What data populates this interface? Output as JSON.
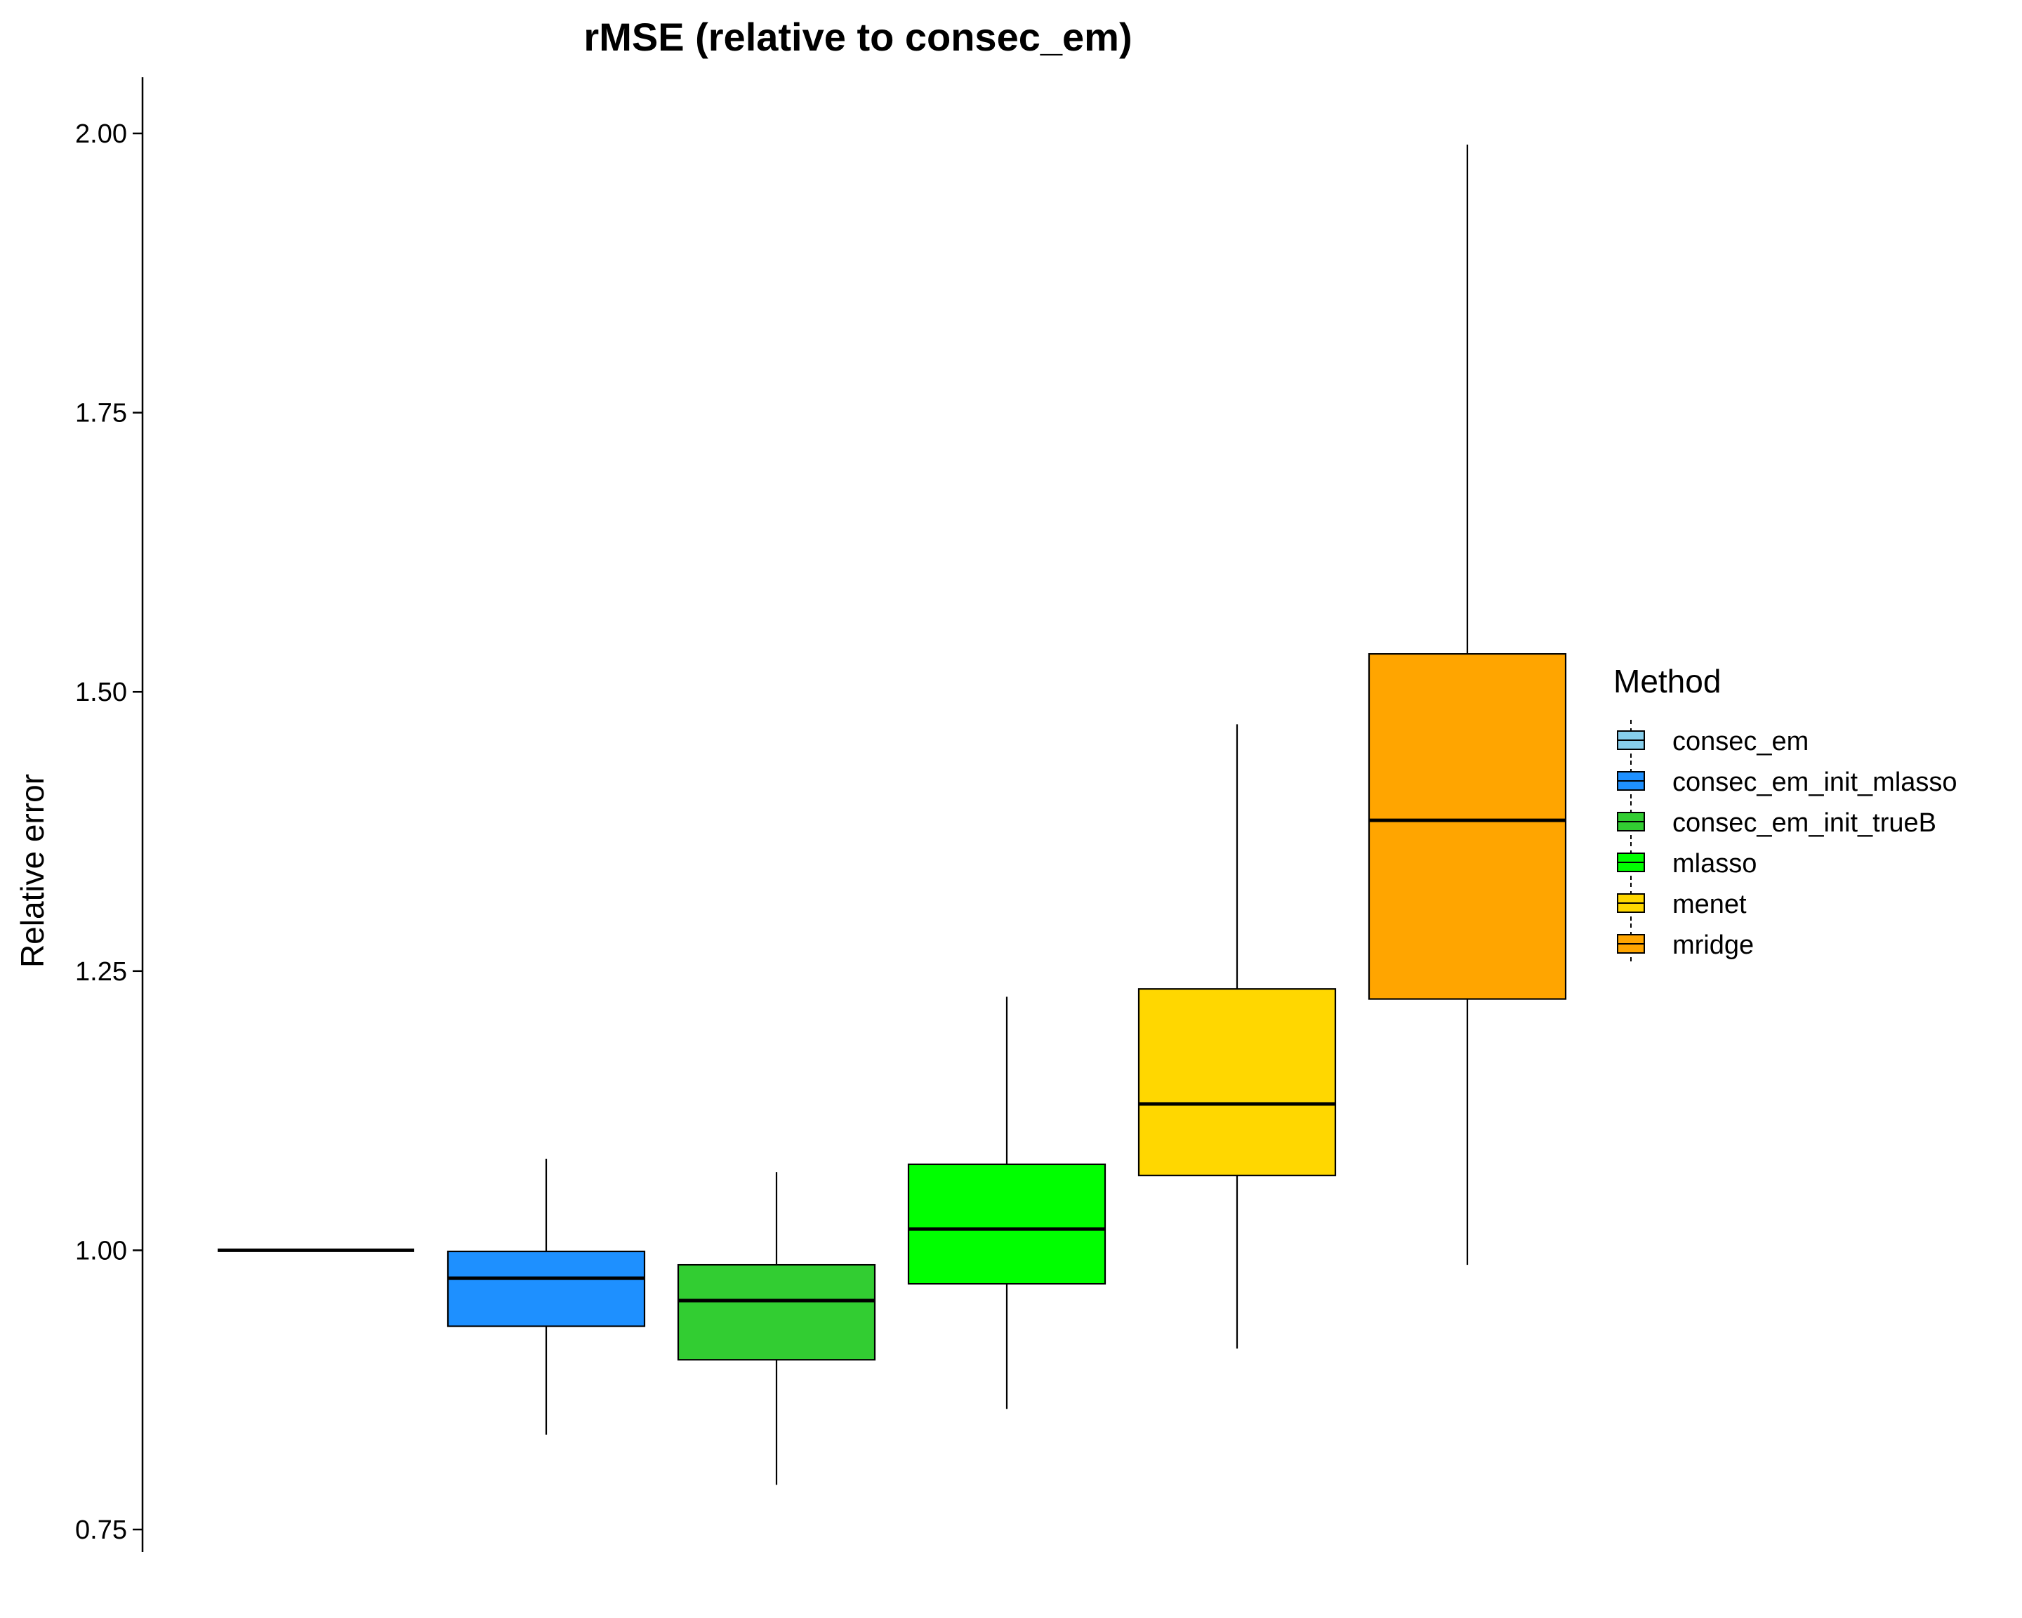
{
  "chart_data": {
    "type": "box",
    "title": "rMSE (relative to consec_em)",
    "xlabel": "",
    "ylabel": "Relative error",
    "ylim": [
      0.75,
      2.05
    ],
    "yticks": [
      0.75,
      1.0,
      1.25,
      1.5,
      1.75,
      2.0
    ],
    "ytick_labels": [
      "0.75",
      "1.00",
      "1.25",
      "1.50",
      "1.75",
      "2.00"
    ],
    "grid": false,
    "legend_position": "right",
    "legend_title": "Method",
    "series": [
      {
        "name": "consec_em",
        "color": "#87CEEB",
        "whisker_low": 1.0,
        "q1": 1.0,
        "median": 1.0,
        "q3": 1.0,
        "whisker_high": 1.0
      },
      {
        "name": "consec_em_init_mlasso",
        "color": "#1E90FF",
        "whisker_low": 0.835,
        "q1": 0.932,
        "median": 0.975,
        "q3": 0.999,
        "whisker_high": 1.082
      },
      {
        "name": "consec_em_init_trueB",
        "color": "#32CD32",
        "whisker_low": 0.79,
        "q1": 0.902,
        "median": 0.955,
        "q3": 0.987,
        "whisker_high": 1.07
      },
      {
        "name": "mlasso",
        "color": "#00FF00",
        "whisker_low": 0.858,
        "q1": 0.97,
        "median": 1.019,
        "q3": 1.077,
        "whisker_high": 1.227
      },
      {
        "name": "menet",
        "color": "#FFD700",
        "whisker_low": 0.912,
        "q1": 1.067,
        "median": 1.131,
        "q3": 1.234,
        "whisker_high": 1.471
      },
      {
        "name": "mridge",
        "color": "#FFA500",
        "whisker_low": 0.987,
        "q1": 1.225,
        "median": 1.385,
        "q3": 1.534,
        "whisker_high": 1.99
      }
    ]
  }
}
